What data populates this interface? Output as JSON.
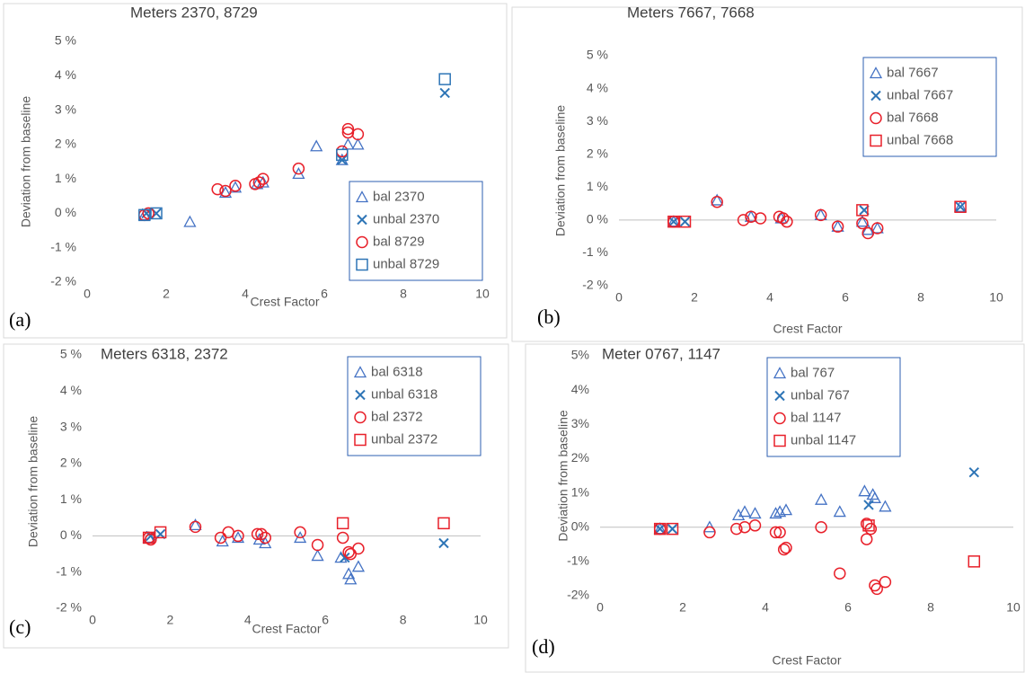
{
  "chart_data": [
    {
      "type": "scatter",
      "title": "Meters 2370, 8729",
      "panel_label": "(a)",
      "xlabel": "Crest Factor",
      "ylabel": "Deviation from baseline",
      "xlim": [
        0,
        10
      ],
      "xticks": [
        0,
        2,
        4,
        6,
        8,
        10
      ],
      "ylim": [
        -2,
        5
      ],
      "yticks": [
        {
          "value": -2,
          "label": "-2 %"
        },
        {
          "value": -1,
          "label": "-1 %"
        },
        {
          "value": 0,
          "label": "0 %"
        },
        {
          "value": 1,
          "label": "1 %"
        },
        {
          "value": 2,
          "label": "2 %"
        },
        {
          "value": 3,
          "label": "3 %"
        },
        {
          "value": 4,
          "label": "4 %"
        },
        {
          "value": 5,
          "label": "5 %"
        }
      ],
      "zero_line": false,
      "legend": "lower right",
      "series": [
        {
          "name": "bal 2370",
          "marker": "triangle",
          "color": "#4472c4",
          "x": [
            1.45,
            2.6,
            3.5,
            3.75,
            4.3,
            4.45,
            5.35,
            5.8,
            6.45,
            6.6,
            6.85
          ],
          "values": [
            -0.05,
            -0.25,
            0.6,
            0.75,
            0.85,
            0.9,
            1.15,
            1.95,
            1.55,
            2.0,
            2.0
          ]
        },
        {
          "name": "unbal 2370",
          "marker": "x",
          "color": "#2e75b6",
          "x": [
            1.5,
            1.75,
            6.45,
            9.05
          ],
          "values": [
            0.0,
            0.0,
            1.55,
            3.5
          ]
        },
        {
          "name": "bal 8729",
          "marker": "circle",
          "color": "#e8202a",
          "x": [
            1.45,
            1.55,
            3.3,
            3.5,
            3.75,
            4.25,
            4.35,
            4.45,
            5.35,
            6.45,
            6.6,
            6.6,
            6.85
          ],
          "values": [
            -0.05,
            0.0,
            0.7,
            0.65,
            0.8,
            0.85,
            0.9,
            1.0,
            1.3,
            1.8,
            2.45,
            2.35,
            2.3
          ]
        },
        {
          "name": "unbal 8729",
          "marker": "square",
          "color": "#2e75b6",
          "x": [
            1.45,
            1.75,
            6.45,
            9.05
          ],
          "values": [
            -0.05,
            0.0,
            1.7,
            3.9
          ]
        }
      ]
    },
    {
      "type": "scatter",
      "title": "Meters 7667, 7668",
      "panel_label": "(b)",
      "xlabel": "Crest Factor",
      "ylabel": "Deviation from baseline",
      "xlim": [
        0,
        10
      ],
      "xticks": [
        0,
        2,
        4,
        6,
        8,
        10
      ],
      "ylim": [
        -2,
        5
      ],
      "yticks": [
        {
          "value": -2,
          "label": "-2 %"
        },
        {
          "value": -1,
          "label": "-1 %"
        },
        {
          "value": 0,
          "label": "0 %"
        },
        {
          "value": 1,
          "label": "1 %"
        },
        {
          "value": 2,
          "label": "2 %"
        },
        {
          "value": 3,
          "label": "3 %"
        },
        {
          "value": 4,
          "label": "4 %"
        },
        {
          "value": 5,
          "label": "5 %"
        }
      ],
      "zero_line": true,
      "legend": "upper right",
      "series": [
        {
          "name": "bal 7667",
          "marker": "triangle",
          "color": "#4472c4",
          "x": [
            1.45,
            2.6,
            3.5,
            4.3,
            5.35,
            5.8,
            6.45,
            6.6,
            6.85,
            9.05
          ],
          "values": [
            -0.05,
            0.6,
            0.1,
            0.05,
            0.15,
            -0.2,
            -0.05,
            -0.3,
            -0.25,
            0.4
          ]
        },
        {
          "name": "unbal 7667",
          "marker": "x",
          "color": "#2e75b6",
          "x": [
            1.45,
            1.75,
            6.5,
            9.05
          ],
          "values": [
            -0.05,
            -0.05,
            0.3,
            0.4
          ]
        },
        {
          "name": "bal 7668",
          "marker": "circle",
          "color": "#e8202a",
          "x": [
            1.45,
            2.6,
            3.3,
            3.5,
            3.75,
            4.25,
            4.35,
            4.45,
            5.35,
            5.8,
            6.45,
            6.6,
            6.85
          ],
          "values": [
            -0.05,
            0.55,
            0.0,
            0.1,
            0.05,
            0.1,
            0.05,
            -0.05,
            0.15,
            -0.2,
            -0.1,
            -0.4,
            -0.25
          ]
        },
        {
          "name": "unbal 7668",
          "marker": "square",
          "color": "#e8202a",
          "x": [
            1.45,
            1.75,
            6.45,
            9.05
          ],
          "values": [
            -0.05,
            -0.05,
            0.3,
            0.4
          ]
        }
      ]
    },
    {
      "type": "scatter",
      "title": "Meters 6318, 2372",
      "panel_label": "(c)",
      "xlabel": "Crest Factor",
      "ylabel": "Deviation from baseline",
      "xlim": [
        0,
        10
      ],
      "xticks": [
        0,
        2,
        4,
        6,
        8,
        10
      ],
      "ylim": [
        -2,
        5
      ],
      "yticks": [
        {
          "value": -2,
          "label": "-2 %"
        },
        {
          "value": -1,
          "label": "-1 %"
        },
        {
          "value": 0,
          "label": "0 %"
        },
        {
          "value": 1,
          "label": "1 %"
        },
        {
          "value": 2,
          "label": "2 %"
        },
        {
          "value": 3,
          "label": "3 %"
        },
        {
          "value": 4,
          "label": "4 %"
        },
        {
          "value": 5,
          "label": "5 %"
        }
      ],
      "zero_line": true,
      "legend": "upper right",
      "series": [
        {
          "name": "bal 6318",
          "marker": "triangle",
          "color": "#4472c4",
          "x": [
            1.45,
            2.65,
            3.35,
            3.75,
            4.3,
            4.45,
            5.35,
            5.8,
            6.4,
            6.6,
            6.65,
            6.85
          ],
          "values": [
            -0.05,
            0.3,
            -0.15,
            -0.05,
            -0.1,
            -0.2,
            -0.05,
            -0.55,
            -0.6,
            -1.05,
            -1.2,
            -0.85
          ]
        },
        {
          "name": "unbal 6318",
          "marker": "x",
          "color": "#2e75b6",
          "x": [
            1.5,
            1.75,
            6.5,
            9.05
          ],
          "values": [
            0.0,
            0.05,
            -0.6,
            -0.2
          ]
        },
        {
          "name": "bal 2372",
          "marker": "circle",
          "color": "#e8202a",
          "x": [
            1.45,
            1.5,
            2.65,
            3.3,
            3.5,
            3.75,
            4.25,
            4.35,
            4.45,
            5.35,
            5.8,
            6.45,
            6.6,
            6.65,
            6.85
          ],
          "values": [
            -0.05,
            -0.1,
            0.25,
            -0.05,
            0.1,
            0.0,
            0.05,
            0.05,
            -0.05,
            0.1,
            -0.25,
            -0.05,
            -0.45,
            -0.5,
            -0.35
          ]
        },
        {
          "name": "unbal 2372",
          "marker": "square",
          "color": "#e8202a",
          "x": [
            1.45,
            1.75,
            6.45,
            9.05
          ],
          "values": [
            -0.05,
            0.1,
            0.35,
            0.35
          ]
        }
      ]
    },
    {
      "type": "scatter",
      "title": "Meter 0767, 1147",
      "panel_label": "(d)",
      "xlabel": "Crest Factor",
      "ylabel": "Deviation from baseline",
      "xlim": [
        0,
        10
      ],
      "xticks": [
        0,
        2,
        4,
        6,
        8,
        10
      ],
      "ylim": [
        -2,
        5
      ],
      "yticks": [
        {
          "value": -2,
          "label": "-2%"
        },
        {
          "value": -1,
          "label": "-1%"
        },
        {
          "value": 0,
          "label": "0%"
        },
        {
          "value": 1,
          "label": "1%"
        },
        {
          "value": 2,
          "label": "2%"
        },
        {
          "value": 3,
          "label": "3%"
        },
        {
          "value": 4,
          "label": "4%"
        },
        {
          "value": 5,
          "label": "5%"
        }
      ],
      "zero_line": true,
      "legend": "upper center",
      "series": [
        {
          "name": "bal 767",
          "marker": "triangle",
          "color": "#4472c4",
          "x": [
            1.45,
            2.65,
            3.35,
            3.5,
            3.75,
            4.25,
            4.35,
            4.5,
            5.35,
            5.8,
            6.4,
            6.6,
            6.65,
            6.9
          ],
          "values": [
            -0.05,
            0.0,
            0.35,
            0.45,
            0.4,
            0.4,
            0.45,
            0.5,
            0.8,
            0.45,
            1.05,
            0.95,
            0.85,
            0.6
          ]
        },
        {
          "name": "unbal 767",
          "marker": "x",
          "color": "#2e75b6",
          "x": [
            1.45,
            1.75,
            6.5,
            9.05
          ],
          "values": [
            -0.05,
            -0.05,
            0.65,
            1.6
          ]
        },
        {
          "name": "bal 1147",
          "marker": "circle",
          "color": "#e8202a",
          "x": [
            1.45,
            2.65,
            3.3,
            3.5,
            3.75,
            4.25,
            4.35,
            4.45,
            4.5,
            5.35,
            5.8,
            6.45,
            6.45,
            6.55,
            6.65,
            6.7,
            6.9
          ],
          "values": [
            -0.05,
            -0.15,
            -0.05,
            0.0,
            0.05,
            -0.15,
            -0.15,
            -0.65,
            -0.6,
            0.0,
            -1.35,
            0.1,
            -0.35,
            -0.05,
            -1.7,
            -1.8,
            -1.6
          ]
        },
        {
          "name": "unbal 1147",
          "marker": "square",
          "color": "#e8202a",
          "x": [
            1.45,
            1.75,
            6.5,
            9.05
          ],
          "values": [
            -0.05,
            -0.05,
            0.05,
            -1.0
          ]
        }
      ]
    }
  ]
}
